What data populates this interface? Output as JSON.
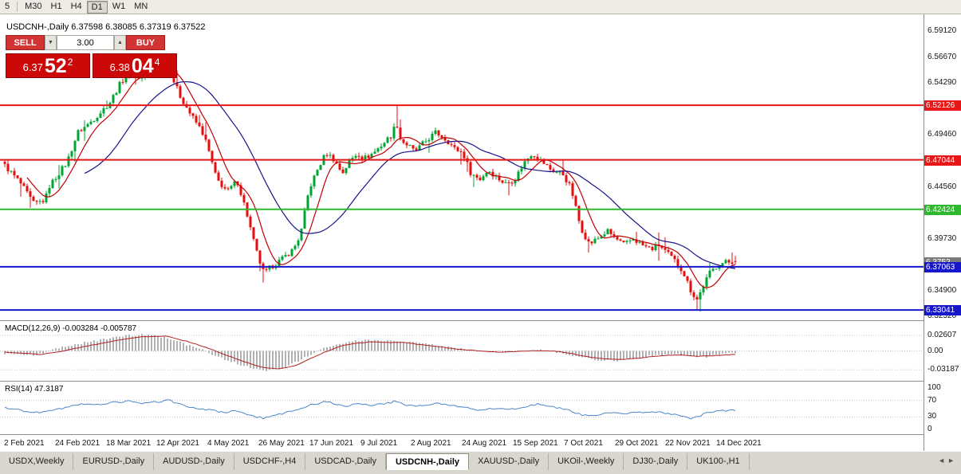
{
  "toolbar": {
    "buttons": [
      {
        "label": "5",
        "active": false
      },
      {
        "label": "M30",
        "active": false
      },
      {
        "label": "H1",
        "active": false
      },
      {
        "label": "H4",
        "active": false
      },
      {
        "label": "D1",
        "active": true
      },
      {
        "label": "W1",
        "active": false
      },
      {
        "label": "MN",
        "active": false
      }
    ]
  },
  "chart": {
    "symbol_label": "USDCNH-,Daily",
    "ohlc_label": "6.37598 6.38085 6.37319 6.37522"
  },
  "trade": {
    "sell_label": "SELL",
    "buy_label": "BUY",
    "volume": "3.00",
    "sell_price": {
      "prefix": "6.37",
      "big": "52",
      "sup": "2"
    },
    "buy_price": {
      "prefix": "6.38",
      "big": "04",
      "sup": "4"
    }
  },
  "indicators": {
    "macd_label": "MACD(12,26,9) -0.003284 -0.005787",
    "rsi_label": "RSI(14) 47.3187"
  },
  "icons": {
    "volume_down": "▼",
    "volume_up": "▲",
    "tab_scroll_left": "◄",
    "tab_scroll_right": "►"
  },
  "axes": {
    "price_ticks": [
      {
        "label": "6.59120",
        "value": 6.5912
      },
      {
        "label": "6.56670",
        "value": 6.5667
      },
      {
        "label": "6.54290",
        "value": 6.5429
      },
      {
        "label": "6.49460",
        "value": 6.4946
      },
      {
        "label": "6.44560",
        "value": 6.4456
      },
      {
        "label": "6.39730",
        "value": 6.3973
      },
      {
        "label": "6.34900",
        "value": 6.349
      },
      {
        "label": "6.32520",
        "value": 6.3252
      }
    ],
    "macd_ticks": [
      {
        "label": "0.02607",
        "value": 0.02607
      },
      {
        "label": "0.00",
        "value": 0
      },
      {
        "label": "-0.03187",
        "value": -0.03187
      }
    ],
    "rsi_ticks": [
      {
        "label": "100",
        "value": 100
      },
      {
        "label": "70",
        "value": 70
      },
      {
        "label": "30",
        "value": 30
      },
      {
        "label": "0",
        "value": 0
      }
    ],
    "dates": [
      "2 Feb 2021",
      "24 Feb 2021",
      "18 Mar 2021",
      "12 Apr 2021",
      "4 May 2021",
      "26 May 2021",
      "17 Jun 2021",
      "9 Jul 2021",
      "2 Aug 2021",
      "24 Aug 2021",
      "15 Sep 2021",
      "7 Oct 2021",
      "29 Oct 2021",
      "22 Nov 2021",
      "14 Dec 2021"
    ]
  },
  "levels": [
    {
      "value": 6.52126,
      "label": "6.52126",
      "color": "#e81616",
      "kind": "resistance"
    },
    {
      "value": 6.47044,
      "label": "6.47044",
      "color": "#e81616",
      "kind": "resistance"
    },
    {
      "value": 6.42424,
      "label": "6.42424",
      "color": "#2db82d",
      "kind": "level"
    },
    {
      "value": 6.37063,
      "label": "6.37063",
      "color": "#1616cc",
      "kind": "support"
    },
    {
      "value": 6.33041,
      "label": "6.33041",
      "color": "#1616cc",
      "kind": "support"
    }
  ],
  "current_price": {
    "label": "6.3752",
    "value": 6.37522
  },
  "tabs": {
    "items": [
      {
        "label": "USDX,Weekly",
        "active": false
      },
      {
        "label": "EURUSD-,Daily",
        "active": false
      },
      {
        "label": "AUDUSD-,Daily",
        "active": false
      },
      {
        "label": "USDCHF-,H4",
        "active": false
      },
      {
        "label": "USDCAD-,Daily",
        "active": false
      },
      {
        "label": "USDCNH-,Daily",
        "active": true
      },
      {
        "label": "XAUUSD-,Daily",
        "active": false
      },
      {
        "label": "UKOil-,Weekly",
        "active": false
      },
      {
        "label": "DJ30-,Daily",
        "active": false
      },
      {
        "label": "UK100-,H1",
        "active": false
      }
    ]
  },
  "colors": {
    "candle_up": "#00a432",
    "candle_down": "#e80c0c",
    "ma_fast": "#c00000",
    "ma_slow": "#14148c",
    "macd_hist": "#a0a0a0",
    "macd_signal": "#b22222",
    "rsi": "#4a86c8",
    "grid_dotted": "#c4c4c4",
    "current_price_bg": "#7a7a7a"
  },
  "chart_data": {
    "type": "candlestick",
    "symbol": "USDCNH-",
    "timeframe": "Daily",
    "title": "USDCNH-,Daily",
    "current_ohlc": {
      "open": 6.37598,
      "high": 6.38085,
      "low": 6.37319,
      "close": 6.37522
    },
    "price_range": [
      6.3223,
      6.6001
    ],
    "candle_count": 230,
    "close_anchors": [
      [
        0,
        6.465
      ],
      [
        0.02,
        6.45
      ],
      [
        0.04,
        6.429
      ],
      [
        0.055,
        6.433
      ],
      [
        0.061,
        6.446
      ],
      [
        0.085,
        6.468
      ],
      [
        0.1,
        6.496
      ],
      [
        0.115,
        6.504
      ],
      [
        0.13,
        6.514
      ],
      [
        0.144,
        6.524
      ],
      [
        0.16,
        6.544
      ],
      [
        0.175,
        6.554
      ],
      [
        0.185,
        6.546
      ],
      [
        0.195,
        6.551
      ],
      [
        0.207,
        6.556
      ],
      [
        0.218,
        6.559
      ],
      [
        0.228,
        6.549
      ],
      [
        0.24,
        6.53
      ],
      [
        0.255,
        6.512
      ],
      [
        0.27,
        6.497
      ],
      [
        0.277,
        6.484
      ],
      [
        0.29,
        6.452
      ],
      [
        0.305,
        6.441
      ],
      [
        0.318,
        6.451
      ],
      [
        0.33,
        6.424
      ],
      [
        0.34,
        6.396
      ],
      [
        0.347,
        6.379
      ],
      [
        0.355,
        6.364
      ],
      [
        0.365,
        6.371
      ],
      [
        0.38,
        6.378
      ],
      [
        0.395,
        6.387
      ],
      [
        0.405,
        6.401
      ],
      [
        0.415,
        6.437
      ],
      [
        0.419,
        6.447
      ],
      [
        0.43,
        6.464
      ],
      [
        0.44,
        6.477
      ],
      [
        0.45,
        6.471
      ],
      [
        0.462,
        6.458
      ],
      [
        0.472,
        6.469
      ],
      [
        0.483,
        6.477
      ],
      [
        0.49,
        6.471
      ],
      [
        0.505,
        6.477
      ],
      [
        0.52,
        6.487
      ],
      [
        0.53,
        6.494
      ],
      [
        0.536,
        6.506
      ],
      [
        0.542,
        6.489
      ],
      [
        0.555,
        6.482
      ],
      [
        0.561,
        6.478
      ],
      [
        0.575,
        6.487
      ],
      [
        0.59,
        6.496
      ],
      [
        0.605,
        6.489
      ],
      [
        0.615,
        6.481
      ],
      [
        0.627,
        6.477
      ],
      [
        0.638,
        6.458
      ],
      [
        0.65,
        6.452
      ],
      [
        0.662,
        6.461
      ],
      [
        0.672,
        6.455
      ],
      [
        0.685,
        6.448
      ],
      [
        0.698,
        6.452
      ],
      [
        0.71,
        6.467
      ],
      [
        0.722,
        6.477
      ],
      [
        0.735,
        6.469
      ],
      [
        0.748,
        6.461
      ],
      [
        0.764,
        6.457
      ],
      [
        0.775,
        6.444
      ],
      [
        0.788,
        6.408
      ],
      [
        0.8,
        6.392
      ],
      [
        0.812,
        6.397
      ],
      [
        0.825,
        6.404
      ],
      [
        0.836,
        6.397
      ],
      [
        0.848,
        6.391
      ],
      [
        0.86,
        6.397
      ],
      [
        0.872,
        6.391
      ],
      [
        0.885,
        6.387
      ],
      [
        0.895,
        6.391
      ],
      [
        0.906,
        6.384
      ],
      [
        0.916,
        6.377
      ],
      [
        0.928,
        6.367
      ],
      [
        0.94,
        6.347
      ],
      [
        0.948,
        6.34
      ],
      [
        0.956,
        6.353
      ],
      [
        0.965,
        6.365
      ],
      [
        0.974,
        6.371
      ],
      [
        0.985,
        6.375
      ],
      [
        1,
        6.3752
      ]
    ],
    "wick_events": [
      {
        "t": 0.218,
        "high": 6.568
      },
      {
        "t": 0.355,
        "low": 6.356
      },
      {
        "t": 0.536,
        "high": 6.5215
      },
      {
        "t": 0.948,
        "low": 6.3304
      }
    ],
    "ma_fast_period": 8,
    "ma_slow_period": 26,
    "macd": {
      "hist_anchors": [
        [
          0,
          -0.004
        ],
        [
          0.04,
          -0.008
        ],
        [
          0.07,
          0.003
        ],
        [
          0.1,
          0.012
        ],
        [
          0.14,
          0.02
        ],
        [
          0.17,
          0.026
        ],
        [
          0.2,
          0.028
        ],
        [
          0.23,
          0.018
        ],
        [
          0.26,
          0.006
        ],
        [
          0.285,
          -0.006
        ],
        [
          0.31,
          -0.018
        ],
        [
          0.335,
          -0.028
        ],
        [
          0.36,
          -0.033
        ],
        [
          0.38,
          -0.029
        ],
        [
          0.4,
          -0.018
        ],
        [
          0.42,
          -0.005
        ],
        [
          0.44,
          0.006
        ],
        [
          0.46,
          0.013
        ],
        [
          0.48,
          0.017
        ],
        [
          0.5,
          0.018
        ],
        [
          0.53,
          0.016
        ],
        [
          0.56,
          0.014
        ],
        [
          0.59,
          0.009
        ],
        [
          0.62,
          0.004
        ],
        [
          0.65,
          0
        ],
        [
          0.68,
          -0.002
        ],
        [
          0.71,
          0.001
        ],
        [
          0.74,
          0.002
        ],
        [
          0.77,
          -0.006
        ],
        [
          0.8,
          -0.013
        ],
        [
          0.82,
          -0.016
        ],
        [
          0.84,
          -0.016
        ],
        [
          0.86,
          -0.013
        ],
        [
          0.88,
          -0.009
        ],
        [
          0.9,
          -0.006
        ],
        [
          0.92,
          -0.006
        ],
        [
          0.94,
          -0.009
        ],
        [
          0.96,
          -0.01
        ],
        [
          0.98,
          -0.006
        ],
        [
          1,
          -0.0033
        ]
      ],
      "signal_anchors": [
        [
          0,
          -0.002
        ],
        [
          0.05,
          -0.006
        ],
        [
          0.08,
          0
        ],
        [
          0.12,
          0.01
        ],
        [
          0.16,
          0.019
        ],
        [
          0.19,
          0.024
        ],
        [
          0.22,
          0.025
        ],
        [
          0.25,
          0.016
        ],
        [
          0.28,
          0.004
        ],
        [
          0.3,
          -0.006
        ],
        [
          0.33,
          -0.019
        ],
        [
          0.355,
          -0.028
        ],
        [
          0.375,
          -0.03
        ],
        [
          0.4,
          -0.024
        ],
        [
          0.42,
          -0.012
        ],
        [
          0.44,
          -0.001
        ],
        [
          0.46,
          0.008
        ],
        [
          0.48,
          0.013
        ],
        [
          0.5,
          0.015
        ],
        [
          0.52,
          0.0145
        ],
        [
          0.545,
          0.014
        ],
        [
          0.56,
          0.012
        ],
        [
          0.58,
          0.009
        ],
        [
          0.6,
          0.006
        ],
        [
          0.62,
          0.003
        ],
        [
          0.64,
          0.001
        ],
        [
          0.66,
          -0.001
        ],
        [
          0.68,
          -0.002
        ],
        [
          0.7,
          -0.001
        ],
        [
          0.72,
          0
        ],
        [
          0.75,
          0
        ],
        [
          0.77,
          -0.003
        ],
        [
          0.79,
          -0.008
        ],
        [
          0.81,
          -0.012
        ],
        [
          0.83,
          -0.014
        ],
        [
          0.85,
          -0.014
        ],
        [
          0.87,
          -0.012
        ],
        [
          0.89,
          -0.009
        ],
        [
          0.91,
          -0.007
        ],
        [
          0.93,
          -0.007
        ],
        [
          0.95,
          -0.009
        ],
        [
          0.97,
          -0.008
        ],
        [
          1,
          -0.0058
        ]
      ],
      "current_main": -0.003284,
      "current_signal": -0.005787
    },
    "rsi": {
      "anchors": [
        [
          0,
          52
        ],
        [
          0.03,
          44
        ],
        [
          0.05,
          40
        ],
        [
          0.07,
          48
        ],
        [
          0.09,
          55
        ],
        [
          0.11,
          62
        ],
        [
          0.13,
          60
        ],
        [
          0.15,
          66
        ],
        [
          0.17,
          68
        ],
        [
          0.19,
          63
        ],
        [
          0.21,
          67
        ],
        [
          0.225,
          70
        ],
        [
          0.24,
          60
        ],
        [
          0.26,
          52
        ],
        [
          0.28,
          47
        ],
        [
          0.3,
          40
        ],
        [
          0.315,
          45
        ],
        [
          0.33,
          37
        ],
        [
          0.345,
          30
        ],
        [
          0.355,
          27
        ],
        [
          0.37,
          35
        ],
        [
          0.385,
          40
        ],
        [
          0.4,
          46
        ],
        [
          0.415,
          58
        ],
        [
          0.43,
          63
        ],
        [
          0.44,
          67
        ],
        [
          0.455,
          60
        ],
        [
          0.465,
          55
        ],
        [
          0.475,
          60
        ],
        [
          0.485,
          63
        ],
        [
          0.5,
          58
        ],
        [
          0.52,
          62
        ],
        [
          0.536,
          68
        ],
        [
          0.55,
          58
        ],
        [
          0.565,
          55
        ],
        [
          0.58,
          60
        ],
        [
          0.595,
          63
        ],
        [
          0.61,
          58
        ],
        [
          0.625,
          56
        ],
        [
          0.64,
          48
        ],
        [
          0.655,
          45
        ],
        [
          0.67,
          52
        ],
        [
          0.685,
          48
        ],
        [
          0.7,
          50
        ],
        [
          0.715,
          57
        ],
        [
          0.73,
          61
        ],
        [
          0.745,
          55
        ],
        [
          0.76,
          52
        ],
        [
          0.775,
          45
        ],
        [
          0.79,
          35
        ],
        [
          0.805,
          32
        ],
        [
          0.82,
          40
        ],
        [
          0.835,
          42
        ],
        [
          0.85,
          38
        ],
        [
          0.865,
          43
        ],
        [
          0.88,
          40
        ],
        [
          0.895,
          42
        ],
        [
          0.91,
          38
        ],
        [
          0.925,
          33
        ],
        [
          0.94,
          26
        ],
        [
          0.95,
          30
        ],
        [
          0.96,
          40
        ],
        [
          0.975,
          44
        ],
        [
          1,
          47.3
        ]
      ],
      "levels": [
        70,
        30
      ],
      "current": 47.3187
    }
  }
}
